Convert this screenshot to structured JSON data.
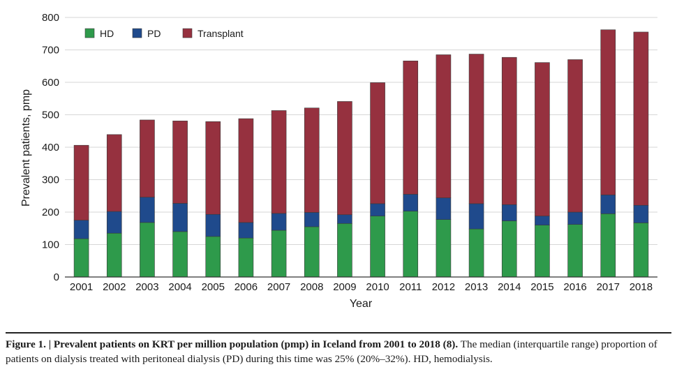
{
  "chart_data": {
    "type": "bar",
    "stacked": true,
    "title": "",
    "xlabel": "Year",
    "ylabel": "Prevalent patients, pmp",
    "ylim": [
      0,
      800
    ],
    "yticks": [
      0,
      100,
      200,
      300,
      400,
      500,
      600,
      700,
      800
    ],
    "grid": true,
    "legend_position": "top-left",
    "categories": [
      "2001",
      "2002",
      "2003",
      "2004",
      "2005",
      "2006",
      "2007",
      "2008",
      "2009",
      "2010",
      "2011",
      "2012",
      "2013",
      "2014",
      "2015",
      "2016",
      "2017",
      "2018"
    ],
    "series": [
      {
        "name": "HD",
        "color": "#2e9a4b",
        "values": [
          118,
          135,
          168,
          140,
          125,
          120,
          144,
          155,
          165,
          188,
          203,
          177,
          148,
          173,
          160,
          162,
          195,
          167
        ]
      },
      {
        "name": "PD",
        "color": "#1f4a8c",
        "values": [
          57,
          67,
          78,
          87,
          68,
          48,
          52,
          44,
          27,
          38,
          52,
          67,
          78,
          50,
          28,
          38,
          58,
          54
        ]
      },
      {
        "name": "Transplant",
        "color": "#96313f",
        "values": [
          231,
          237,
          238,
          254,
          286,
          320,
          317,
          322,
          349,
          373,
          411,
          441,
          461,
          454,
          473,
          470,
          509,
          534
        ]
      }
    ]
  },
  "caption": {
    "lead": "Figure 1. | Prevalent patients on KRT per million population (pmp) in Iceland from 2001 to 2018 (8).",
    "body": " The median (interquartile range) proportion of patients on dialysis treated with peritoneal dialysis (PD) during this time was 25% (20%–32%). HD, hemodialysis."
  }
}
